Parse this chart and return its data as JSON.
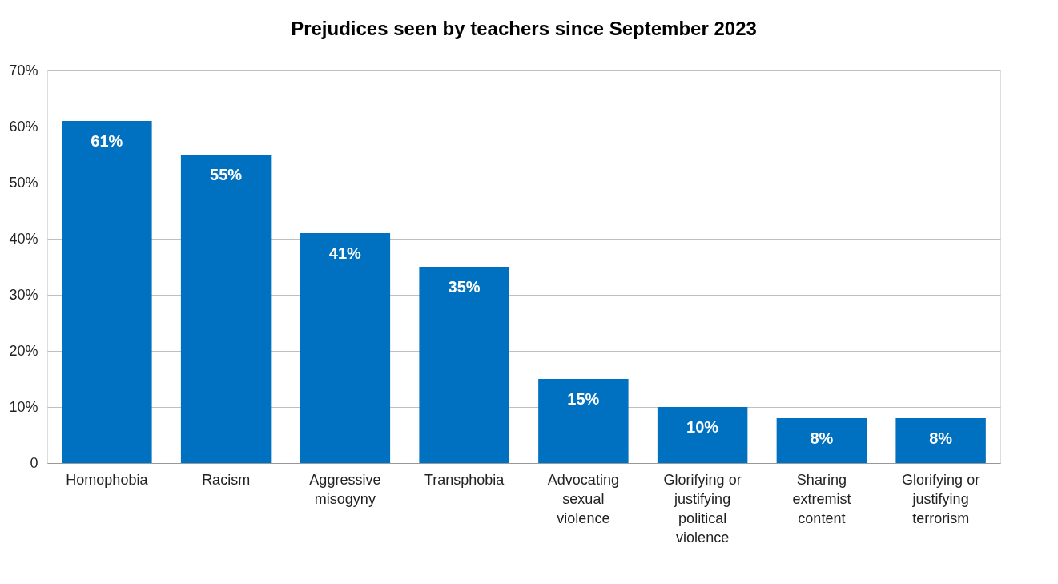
{
  "chart_data": {
    "type": "bar",
    "title": "Prejudices seen by teachers since September 2023",
    "categories": [
      "Homophobia",
      "Racism",
      "Aggressive misogyny",
      "Transphobia",
      "Advocating sexual violence",
      "Glorifying or justifying political violence",
      "Sharing extremist content",
      "Glorifying or justifying terrorism"
    ],
    "values": [
      61,
      55,
      41,
      35,
      15,
      10,
      8,
      8
    ],
    "value_labels": [
      "61%",
      "55%",
      "41%",
      "35%",
      "15%",
      "10%",
      "8%",
      "8%"
    ],
    "color": "#0070c0",
    "ylim": [
      0,
      70
    ],
    "yticks": [
      0,
      {
        "value": 10,
        "label": "10%"
      },
      {
        "value": 20,
        "label": "20%"
      },
      {
        "value": 30,
        "label": "30%"
      },
      {
        "value": 40,
        "label": "40%"
      },
      {
        "value": 50,
        "label": "50%"
      },
      {
        "value": 60,
        "label": "60%"
      },
      {
        "value": 70,
        "label": "70%"
      }
    ],
    "grid": "y"
  }
}
